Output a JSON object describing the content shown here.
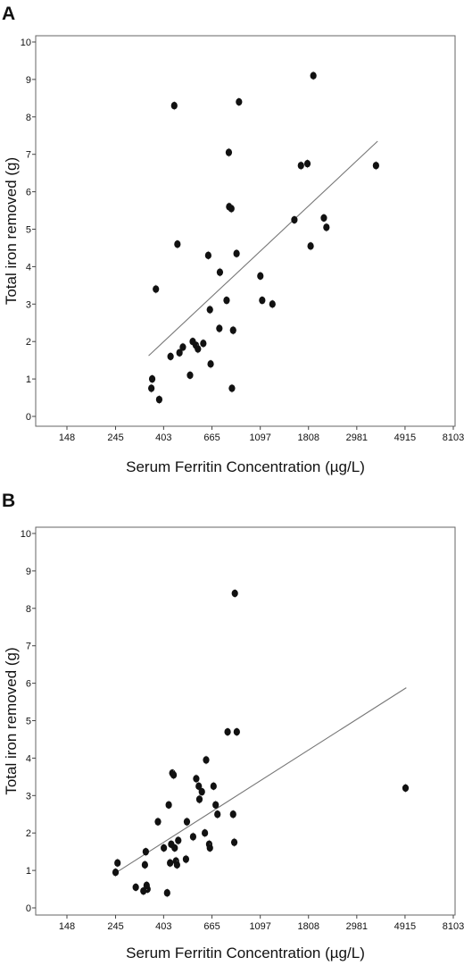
{
  "chart_data": [
    {
      "panel": "A",
      "type": "scatter",
      "xlabel": "Serum Ferritin Concentration (µg/L)",
      "ylabel": "Total iron removed (g)",
      "x_scale": "log",
      "xlim": [
        148,
        8103
      ],
      "ylim": [
        0,
        10
      ],
      "x_ticks": [
        "148",
        "245",
        "403",
        "665",
        "1097",
        "1808",
        "2981",
        "4915",
        "8103"
      ],
      "y_ticks": [
        "0",
        "1",
        "2",
        "3",
        "4",
        "5",
        "6",
        "7",
        "8",
        "9",
        "10"
      ],
      "grid": false,
      "legend": "none",
      "points": [
        {
          "x": 355,
          "y": 0.75
        },
        {
          "x": 358,
          "y": 1.0
        },
        {
          "x": 385,
          "y": 0.45
        },
        {
          "x": 372,
          "y": 3.4
        },
        {
          "x": 433,
          "y": 1.6
        },
        {
          "x": 475,
          "y": 1.7
        },
        {
          "x": 492,
          "y": 1.85
        },
        {
          "x": 530,
          "y": 1.1
        },
        {
          "x": 545,
          "y": 2.0
        },
        {
          "x": 563,
          "y": 1.9
        },
        {
          "x": 575,
          "y": 1.8
        },
        {
          "x": 608,
          "y": 1.95
        },
        {
          "x": 656,
          "y": 1.4
        },
        {
          "x": 651,
          "y": 2.85
        },
        {
          "x": 640,
          "y": 4.3
        },
        {
          "x": 450,
          "y": 8.3
        },
        {
          "x": 465,
          "y": 4.6
        },
        {
          "x": 718,
          "y": 2.35
        },
        {
          "x": 722,
          "y": 3.85
        },
        {
          "x": 774,
          "y": 3.1
        },
        {
          "x": 792,
          "y": 7.05
        },
        {
          "x": 795,
          "y": 5.6
        },
        {
          "x": 813,
          "y": 5.55
        },
        {
          "x": 828,
          "y": 2.3
        },
        {
          "x": 818,
          "y": 0.75
        },
        {
          "x": 858,
          "y": 4.35
        },
        {
          "x": 880,
          "y": 8.4
        },
        {
          "x": 1098,
          "y": 3.75
        },
        {
          "x": 1119,
          "y": 3.1
        },
        {
          "x": 1244,
          "y": 3.0
        },
        {
          "x": 1562,
          "y": 5.25
        },
        {
          "x": 1672,
          "y": 6.7
        },
        {
          "x": 1788,
          "y": 6.75
        },
        {
          "x": 1848,
          "y": 4.55
        },
        {
          "x": 1901,
          "y": 9.1
        },
        {
          "x": 2120,
          "y": 5.3
        },
        {
          "x": 2177,
          "y": 5.05
        },
        {
          "x": 3638,
          "y": 6.7
        }
      ],
      "trendline": [
        {
          "x": 345,
          "y": 1.62
        },
        {
          "x": 3700,
          "y": 7.35
        }
      ]
    },
    {
      "panel": "B",
      "type": "scatter",
      "xlabel": "Serum Ferritin Concentration (µg/L)",
      "ylabel": "Total iron removed (g)",
      "x_scale": "log",
      "xlim": [
        148,
        8103
      ],
      "ylim": [
        0,
        10
      ],
      "x_ticks": [
        "148",
        "245",
        "403",
        "665",
        "1097",
        "1808",
        "2981",
        "4915",
        "8103"
      ],
      "y_ticks": [
        "0",
        "1",
        "2",
        "3",
        "4",
        "5",
        "6",
        "7",
        "8",
        "9",
        "10"
      ],
      "grid": false,
      "legend": "none",
      "points": [
        {
          "x": 245,
          "y": 0.95
        },
        {
          "x": 250,
          "y": 1.2
        },
        {
          "x": 302,
          "y": 0.55
        },
        {
          "x": 327,
          "y": 0.45
        },
        {
          "x": 332,
          "y": 1.15
        },
        {
          "x": 335,
          "y": 1.5
        },
        {
          "x": 341,
          "y": 0.5
        },
        {
          "x": 338,
          "y": 0.6
        },
        {
          "x": 380,
          "y": 2.3
        },
        {
          "x": 404,
          "y": 1.6
        },
        {
          "x": 418,
          "y": 0.4
        },
        {
          "x": 425,
          "y": 2.75
        },
        {
          "x": 431,
          "y": 1.2
        },
        {
          "x": 436,
          "y": 1.7
        },
        {
          "x": 441,
          "y": 3.6
        },
        {
          "x": 447,
          "y": 3.55
        },
        {
          "x": 452,
          "y": 1.6
        },
        {
          "x": 458,
          "y": 1.25
        },
        {
          "x": 463,
          "y": 1.15
        },
        {
          "x": 469,
          "y": 1.8
        },
        {
          "x": 508,
          "y": 1.3
        },
        {
          "x": 513,
          "y": 2.3
        },
        {
          "x": 547,
          "y": 1.9
        },
        {
          "x": 565,
          "y": 3.45
        },
        {
          "x": 580,
          "y": 3.25
        },
        {
          "x": 584,
          "y": 2.9
        },
        {
          "x": 599,
          "y": 3.1
        },
        {
          "x": 618,
          "y": 2.0
        },
        {
          "x": 626,
          "y": 3.95
        },
        {
          "x": 646,
          "y": 1.7
        },
        {
          "x": 651,
          "y": 1.6
        },
        {
          "x": 676,
          "y": 3.25
        },
        {
          "x": 691,
          "y": 2.75
        },
        {
          "x": 704,
          "y": 2.5
        },
        {
          "x": 782,
          "y": 4.7
        },
        {
          "x": 828,
          "y": 2.5
        },
        {
          "x": 838,
          "y": 1.75
        },
        {
          "x": 843,
          "y": 8.4
        },
        {
          "x": 860,
          "y": 4.7
        },
        {
          "x": 4941,
          "y": 3.2
        }
      ],
      "trendline": [
        {
          "x": 240,
          "y": 0.9
        },
        {
          "x": 4980,
          "y": 5.88
        }
      ]
    }
  ]
}
